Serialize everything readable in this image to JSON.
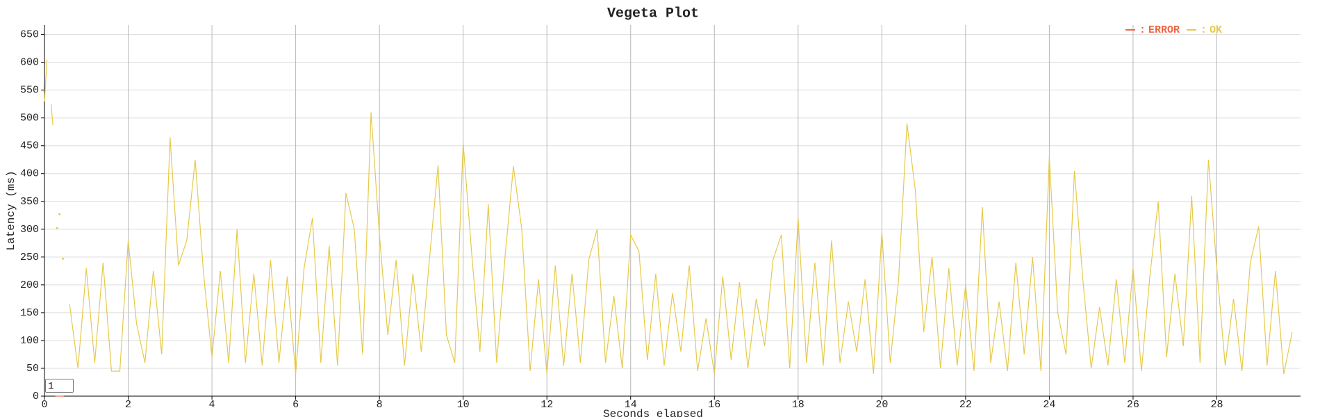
{
  "chart_data": {
    "type": "line",
    "title": "Vegeta Plot",
    "x_label": "Seconds elapsed",
    "y_label": "Latency (ms)",
    "xlim": [
      0,
      30
    ],
    "xticks": [
      0,
      2,
      4,
      6,
      8,
      10,
      12,
      14,
      16,
      18,
      20,
      22,
      24,
      26,
      28
    ],
    "ylim": [
      0,
      667
    ],
    "yticks": [
      0,
      50,
      100,
      150,
      200,
      250,
      300,
      350,
      400,
      450,
      500,
      550,
      600,
      650
    ],
    "grid": true,
    "legend": "top-right",
    "roller": "1",
    "series": [
      {
        "name": "ERROR",
        "color": "#ee6644",
        "x": [
          0.26,
          0.3,
          0.34,
          0.4,
          0.46
        ],
        "values": [
          0,
          0,
          0,
          0,
          0
        ]
      },
      {
        "name": "OK",
        "color": "#e6c94a",
        "x": [
          0,
          0.06,
          0.1,
          0.16,
          0.2,
          0.26,
          0.3,
          0.34,
          0.36,
          0.4,
          0.44,
          0.5,
          0.6,
          0.8,
          1.0,
          1.2,
          1.4,
          1.6,
          1.8,
          2.0,
          2.2,
          2.4,
          2.6,
          2.8,
          3.0,
          3.2,
          3.4,
          3.6,
          3.8,
          4.0,
          4.2,
          4.4,
          4.6,
          4.8,
          5.0,
          5.2,
          5.4,
          5.6,
          5.8,
          6.0,
          6.2,
          6.4,
          6.6,
          6.8,
          7.0,
          7.2,
          7.4,
          7.6,
          7.8,
          8.0,
          8.2,
          8.4,
          8.6,
          8.8,
          9.0,
          9.2,
          9.4,
          9.6,
          9.8,
          10.0,
          10.2,
          10.4,
          10.6,
          10.8,
          11.0,
          11.2,
          11.4,
          11.6,
          11.8,
          12.0,
          12.2,
          12.4,
          12.6,
          12.8,
          13.0,
          13.2,
          13.4,
          13.6,
          13.8,
          14.0,
          14.2,
          14.4,
          14.6,
          14.8,
          15.0,
          15.2,
          15.4,
          15.6,
          15.8,
          16.0,
          16.2,
          16.4,
          16.6,
          16.8,
          17.0,
          17.2,
          17.4,
          17.6,
          17.8,
          18.0,
          18.2,
          18.4,
          18.6,
          18.8,
          19.0,
          19.2,
          19.4,
          19.6,
          19.8,
          20.0,
          20.2,
          20.4,
          20.6,
          20.8,
          21.0,
          21.2,
          21.4,
          21.6,
          21.8,
          22.0,
          22.2,
          22.4,
          22.6,
          22.8,
          23.0,
          23.2,
          23.4,
          23.6,
          23.8,
          24.0,
          24.2,
          24.4,
          24.6,
          24.8,
          25.0,
          25.2,
          25.4,
          25.6,
          25.8,
          26.0,
          26.2,
          26.4,
          26.6,
          26.8,
          27.0,
          27.2,
          27.4,
          27.6,
          27.8,
          28.0,
          28.2,
          28.4,
          28.6,
          28.8,
          29.0,
          29.2,
          29.4,
          29.6,
          29.8
        ],
        "values": [
          530,
          605,
          null,
          525,
          487,
          null,
          302,
          null,
          327,
          null,
          247,
          null,
          165,
          50,
          230,
          60,
          240,
          45,
          45,
          280,
          130,
          60,
          225,
          75,
          465,
          235,
          280,
          425,
          220,
          70,
          225,
          60,
          300,
          60,
          220,
          55,
          245,
          60,
          215,
          40,
          230,
          320,
          60,
          270,
          55,
          365,
          300,
          75,
          510,
          290,
          110,
          245,
          55,
          220,
          80,
          250,
          415,
          110,
          60,
          455,
          260,
          80,
          345,
          60,
          250,
          413,
          300,
          45,
          210,
          40,
          235,
          55,
          220,
          60,
          245,
          300,
          60,
          180,
          50,
          290,
          260,
          65,
          220,
          55,
          185,
          80,
          235,
          45,
          140,
          40,
          215,
          65,
          205,
          50,
          175,
          90,
          245,
          290,
          50,
          320,
          60,
          240,
          55,
          280,
          60,
          170,
          80,
          210,
          40,
          295,
          60,
          210,
          490,
          370,
          115,
          250,
          50,
          230,
          55,
          200,
          45,
          340,
          60,
          170,
          45,
          240,
          75,
          250,
          45,
          430,
          150,
          75,
          405,
          210,
          50,
          160,
          55,
          210,
          60,
          230,
          45,
          215,
          350,
          70,
          220,
          90,
          360,
          60,
          425,
          230,
          55,
          175,
          45,
          240,
          305,
          55,
          225,
          40,
          115
        ]
      }
    ]
  }
}
